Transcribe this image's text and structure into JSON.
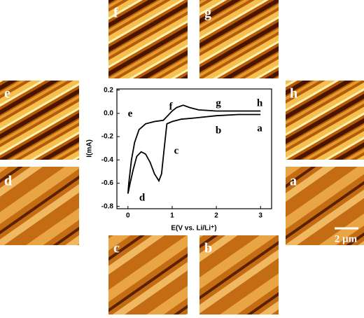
{
  "chart_data": {
    "type": "line",
    "y_label": "I(mA)",
    "x_label": "E(V vs. Li/Li⁺)",
    "x": [
      3,
      2.5,
      2,
      1.5,
      1.2,
      1.0,
      0.88,
      0.82,
      0.76,
      0.7,
      0.6,
      0.5,
      0.4,
      0.3,
      0.2,
      0.12,
      0.05,
      0.0,
      0.02,
      0.08,
      0.15,
      0.25,
      0.4,
      0.6,
      0.8,
      0.9,
      1.0,
      1.1,
      1.25,
      1.4,
      1.6,
      2,
      2.5,
      3
    ],
    "series": [
      {
        "color": "#000000",
        "values": [
          -0.01,
          -0.01,
          -0.02,
          -0.04,
          -0.05,
          -0.07,
          -0.09,
          -0.3,
          -0.52,
          -0.58,
          -0.52,
          -0.42,
          -0.35,
          -0.33,
          -0.37,
          -0.48,
          -0.6,
          -0.69,
          -0.6,
          -0.4,
          -0.25,
          -0.14,
          -0.09,
          -0.07,
          -0.06,
          -0.02,
          0.02,
          0.05,
          0.07,
          0.05,
          0.03,
          0.02,
          0.02,
          0.02
        ]
      }
    ],
    "xlim": [
      -0.25,
      3.25
    ],
    "ylim": [
      -0.82,
      0.21
    ],
    "xticks": [
      0,
      1,
      2,
      3
    ],
    "yticks": [
      0.2,
      {
        "value": 0,
        "label": "0.0"
      },
      -0.2,
      -0.4,
      -0.6,
      -0.8
    ],
    "annotations": [
      "a",
      "b",
      "c",
      "d",
      "e",
      "f",
      "g",
      "h"
    ]
  },
  "images": [
    {
      "label": "f"
    },
    {
      "label": "g"
    },
    {
      "label": "e"
    },
    {
      "label": "h"
    },
    {
      "label": "d"
    },
    {
      "label": "a"
    },
    {
      "label": "c"
    },
    {
      "label": "b"
    }
  ],
  "scale_bar": "2 μm"
}
